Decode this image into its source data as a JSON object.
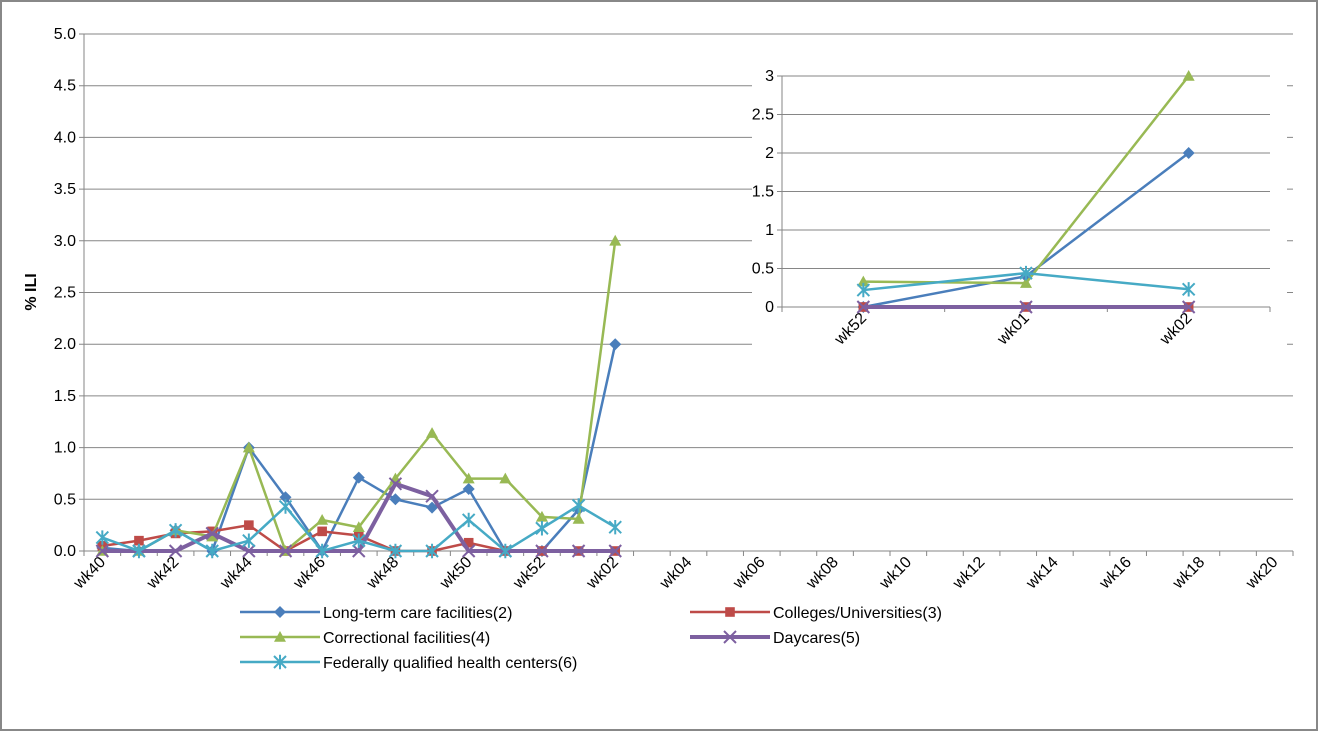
{
  "chart_data": [
    {
      "type": "line",
      "y_label": "% ILI",
      "categories": [
        "wk40",
        null,
        "wk42",
        null,
        "wk44",
        null,
        "wk46",
        null,
        "wk48",
        null,
        "wk50",
        null,
        "wk52",
        null,
        "wk02",
        null,
        "wk04",
        null,
        "wk06",
        null,
        "wk08",
        null,
        "wk10",
        null,
        "wk12",
        null,
        "wk14",
        null,
        "wk16",
        null,
        "wk18",
        null,
        "wk20"
      ],
      "ylim": [
        0,
        5
      ],
      "yticks": [
        {
          "value": 0,
          "label": "0.0"
        },
        0.5,
        {
          "value": 1,
          "label": "1.0"
        },
        1.5,
        {
          "value": 2,
          "label": "2.0"
        },
        2.5,
        {
          "value": 3,
          "label": "3.0"
        },
        3.5,
        {
          "value": 4,
          "label": "4.0"
        },
        4.5,
        {
          "value": 5,
          "label": "5.0"
        }
      ],
      "grid": true,
      "series": [
        {
          "name": "Long-term care facilities(2)",
          "color": "#4a7ebb",
          "marker": "diamond",
          "values": [
            0.03,
            0,
            0.2,
            0,
            1.0,
            0.52,
            0,
            0.71,
            0.5,
            0.42,
            0.6,
            0,
            0,
            0.4,
            2.0,
            null,
            null,
            null,
            null,
            null,
            null,
            null,
            null,
            null,
            null,
            null,
            null,
            null,
            null,
            null,
            null,
            null,
            null
          ]
        },
        {
          "name": "Colleges/Universities(3)",
          "color": "#be4b48",
          "marker": "square",
          "values": [
            0.05,
            0.1,
            0.17,
            0.19,
            0.25,
            0,
            0.19,
            0.15,
            0,
            0,
            0.08,
            0,
            0,
            0,
            0,
            null,
            null,
            null,
            null,
            null,
            null,
            null,
            null,
            null,
            null,
            null,
            null,
            null,
            null,
            null,
            null,
            null,
            null
          ]
        },
        {
          "name": "Correctional facilities(4)",
          "color": "#98b954",
          "marker": "triangle",
          "values": [
            0,
            0,
            0.2,
            0.14,
            1.0,
            0,
            0.3,
            0.23,
            0.7,
            1.14,
            0.7,
            0.7,
            0.33,
            0.31,
            3.0,
            null,
            null,
            null,
            null,
            null,
            null,
            null,
            null,
            null,
            null,
            null,
            null,
            null,
            null,
            null,
            null,
            null,
            null
          ]
        },
        {
          "name": "Daycares(5)",
          "color": "#7d60a0",
          "marker": "x",
          "values": [
            0,
            0,
            0,
            0.17,
            0,
            0,
            0,
            0,
            0.65,
            0.53,
            0,
            0,
            0,
            0,
            0,
            null,
            null,
            null,
            null,
            null,
            null,
            null,
            null,
            null,
            null,
            null,
            null,
            null,
            null,
            null,
            null,
            null,
            null
          ]
        },
        {
          "name": "Federally qualified health centers(6)",
          "color": "#46aac5",
          "marker": "star",
          "values": [
            0.13,
            0,
            0.2,
            0,
            0.1,
            0.43,
            0,
            0.1,
            0,
            0,
            0.3,
            0,
            0.22,
            0.44,
            0.23,
            null,
            null,
            null,
            null,
            null,
            null,
            null,
            null,
            null,
            null,
            null,
            null,
            null,
            null,
            null,
            null,
            null,
            null
          ]
        }
      ]
    },
    {
      "type": "line",
      "categories": [
        "wk52",
        "wk01",
        "wk02"
      ],
      "ylim": [
        0,
        3
      ],
      "yticks": [
        0,
        0.5,
        1,
        1.5,
        2,
        2.5,
        3
      ],
      "grid": true,
      "series": [
        {
          "color": "#4a7ebb",
          "marker": "diamond",
          "values": [
            0,
            0.4,
            2
          ]
        },
        {
          "color": "#be4b48",
          "marker": "square",
          "values": [
            0,
            0,
            0
          ]
        },
        {
          "color": "#98b954",
          "marker": "triangle",
          "values": [
            0.33,
            0.31,
            3
          ]
        },
        {
          "color": "#7d60a0",
          "marker": "x",
          "values": [
            0,
            0,
            0
          ]
        },
        {
          "color": "#46aac5",
          "marker": "star",
          "values": [
            0.22,
            0.44,
            0.23
          ]
        }
      ]
    }
  ]
}
